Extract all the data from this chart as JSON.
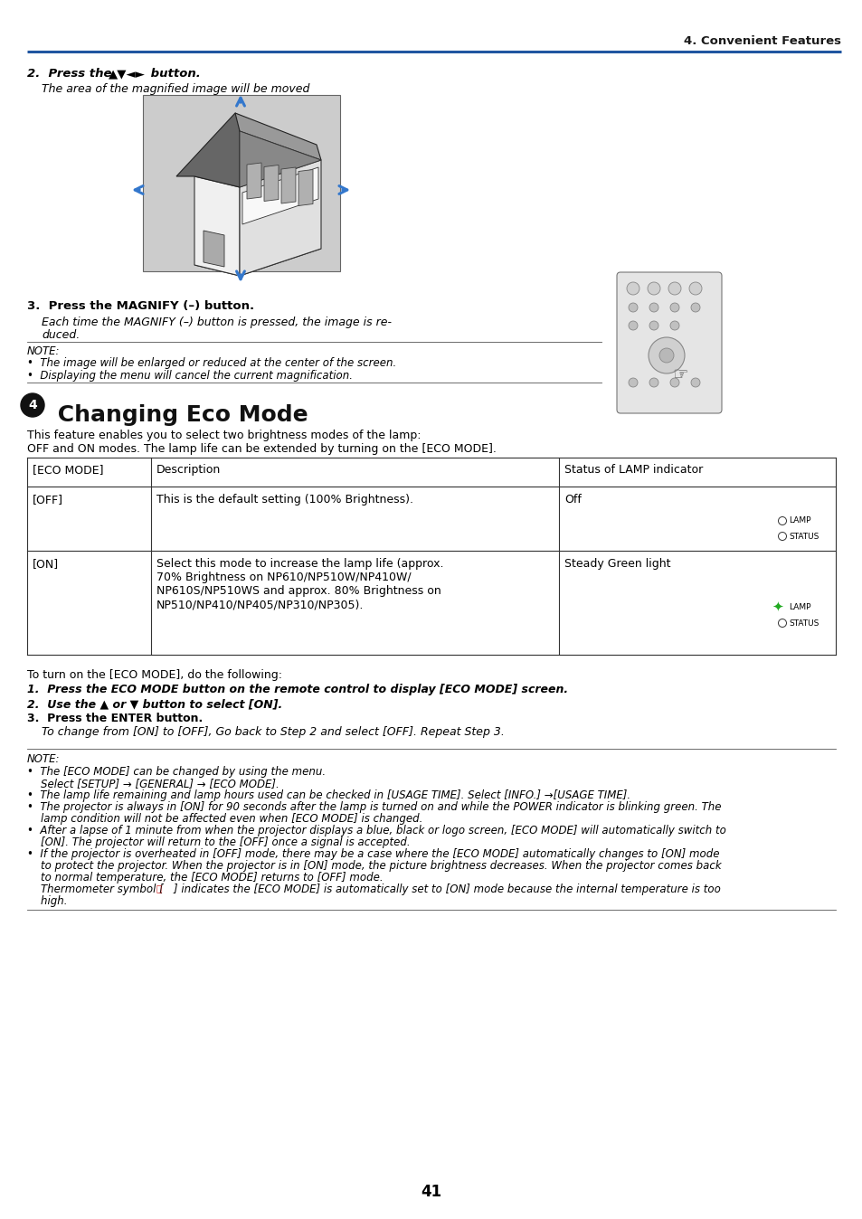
{
  "bg_color": "#ffffff",
  "header_line_color": "#2055a0",
  "header_text": "4. Convenient Features",
  "page_number": "41",
  "section2_heading_pre": "2.  Press the ",
  "section2_heading_arrows": "▲▼◄►",
  "section2_heading_post": " button.",
  "section2_subtext": "The area of the magnified image will be moved",
  "section3_heading": "3.  Press the MAGNIFY (–) button.",
  "section3_subtext1": "Each time the MAGNIFY (–) button is pressed, the image is re-",
  "section3_subtext2": "duced.",
  "note_label": "NOTE:",
  "note_bullet1": "•  The image will be enlarged or reduced at the center of the screen.",
  "note_bullet2": "•  Displaying the menu will cancel the current magnification.",
  "eco_heading_num": "4",
  "eco_heading_text": " Changing Eco Mode",
  "eco_intro1": "This feature enables you to select two brightness modes of the lamp:",
  "eco_intro2": "OFF and ON modes. The lamp life can be extended by turning on the [ECO MODE].",
  "table_col1_header": "[ECO MODE]",
  "table_col2_header": "Description",
  "table_col3_header": "Status of LAMP indicator",
  "table_row1_col1": "[OFF]",
  "table_row1_col2": "This is the default setting (100% Brightness).",
  "table_row1_col3_main": "Off",
  "table_row1_lamp": "LAMP",
  "table_row1_status": "STATUS",
  "table_row2_col1": "[ON]",
  "table_row2_col2_line1": "Select this mode to increase the lamp life (approx.",
  "table_row2_col2_line2": "70% Brightness on NP610/NP510W/NP410W/",
  "table_row2_col2_line3": "NP610S/NP510WS and approx. 80% Brightness on",
  "table_row2_col2_line4": "NP510/NP410/NP405/NP310/NP305).",
  "table_row2_col3_main": "Steady Green light",
  "table_row2_lamp": "LAMP",
  "table_row2_status": "STATUS",
  "steps_intro": "To turn on the [ECO MODE], do the following:",
  "step1": "1.  Press the ECO MODE button on the remote control to display [ECO MODE] screen.",
  "step2": "2.  Use the ▲ or ▼ button to select [ON].",
  "step3": "3.  Press the ENTER button.",
  "step3_sub": "    To change from [ON] to [OFF], Go back to Step 2 and select [OFF]. Repeat Step 3.",
  "note2_label": "NOTE:",
  "note2_lines": [
    "•  The [ECO MODE] can be changed by using the menu.",
    "    Select [SETUP] → [GENERAL] → [ECO MODE].",
    "•  The lamp life remaining and lamp hours used can be checked in [USAGE TIME]. Select [INFO.] →[USAGE TIME].",
    "•  The projector is always in [ON] for 90 seconds after the lamp is turned on and while the POWER indicator is blinking green. The",
    "    lamp condition will not be affected even when [ECO MODE] is changed.",
    "•  After a lapse of 1 minute from when the projector displays a blue, black or logo screen, [ECO MODE] will automatically switch to",
    "    [ON]. The projector will return to the [OFF] once a signal is accepted.",
    "•  If the projector is overheated in [OFF] mode, there may be a case where the [ECO MODE] automatically changes to [ON] mode",
    "    to protect the projector. When the projector is in [ON] mode, the picture brightness decreases. When the projector comes back",
    "    to normal temperature, the [ECO MODE] returns to [OFF] mode.",
    "    Thermometer symbol [   ] indicates the [ECO MODE] is automatically set to [ON] mode because the internal temperature is too",
    "    high."
  ]
}
